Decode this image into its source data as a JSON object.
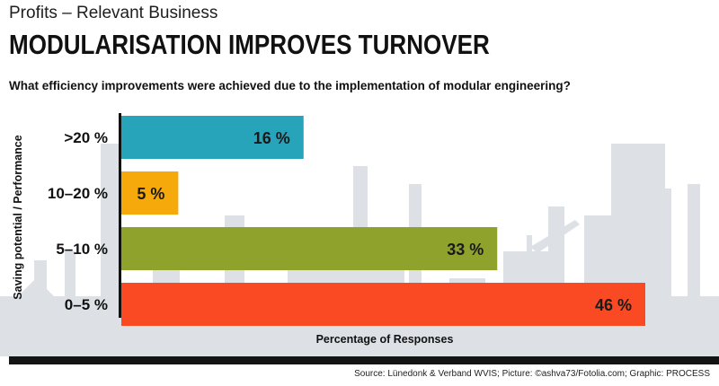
{
  "header": {
    "kicker": "Profits – Relevant Business",
    "headline": "MODULARISATION IMPROVES TURNOVER",
    "question": "What efficiency improvements were achieved due to the implementation of modular engineering?"
  },
  "footer": {
    "source": "Source: Lünedonk & Verband WVIS; Picture: ©ashva73/Fotolia.com; Graphic: PROCESS"
  },
  "chart_data": {
    "type": "bar",
    "orientation": "horizontal",
    "categories": [
      ">20 %",
      "10–20 %",
      "5–10 %",
      "0–5 %"
    ],
    "values": [
      16,
      5,
      33,
      46
    ],
    "value_labels": [
      "16 %",
      "5 %",
      "33 %",
      "46 %"
    ],
    "colors": [
      "#27a4ba",
      "#f5a90a",
      "#8fa22c",
      "#fa4a23"
    ],
    "xlabel": "Percentage of Responses",
    "ylabel": "Saving potential / Performance",
    "xlim": [
      0,
      46
    ],
    "grid": false,
    "legend": "none"
  },
  "background": {
    "skyline_color": "#dde1e6"
  }
}
